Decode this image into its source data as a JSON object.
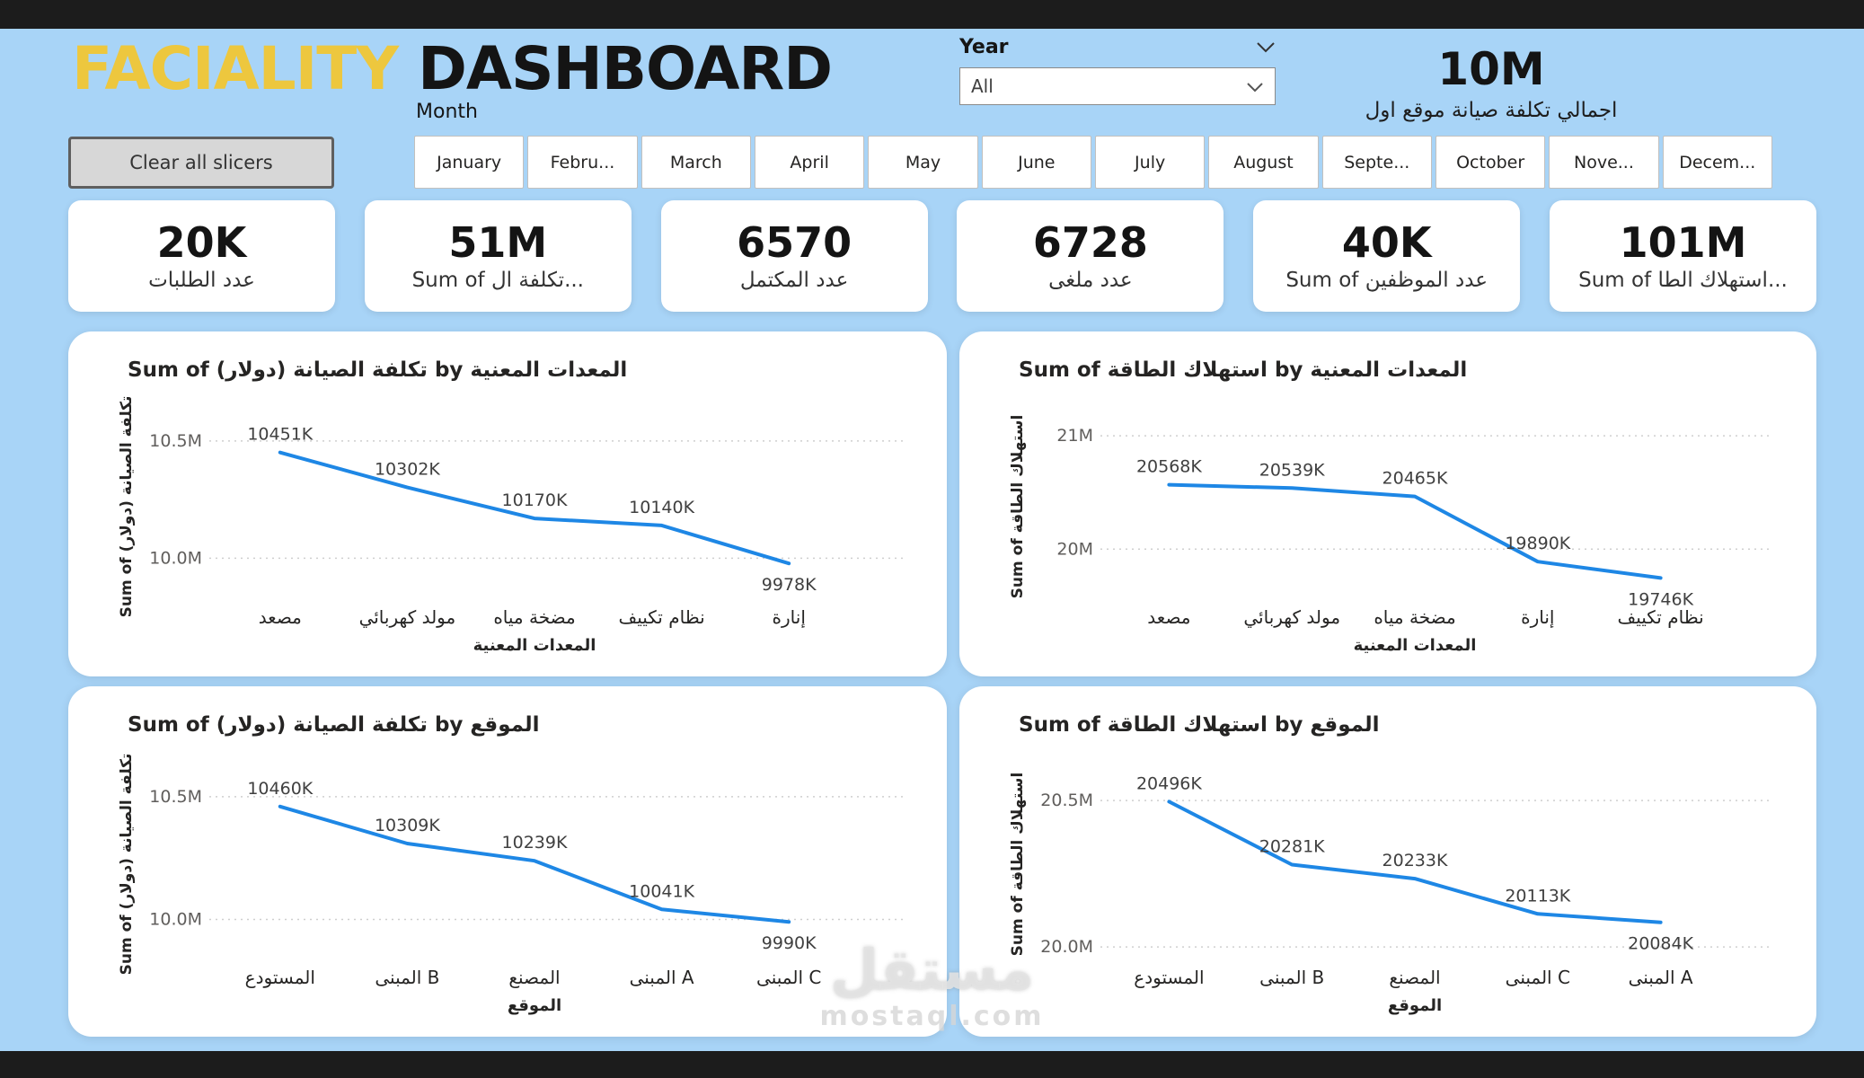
{
  "header": {
    "title_part1": "FACIALITY",
    "title_part2": "DASHBOARD",
    "month_label": "Month",
    "year_label": "Year",
    "year_value": "All",
    "total_value": "10M",
    "total_label": "اجمالي تكلفة صيانة موقع اول",
    "clear_slicers_label": "Clear all slicers"
  },
  "months": [
    "January",
    "Febru...",
    "March",
    "April",
    "May",
    "June",
    "July",
    "August",
    "Septe...",
    "October",
    "Nove...",
    "Decem..."
  ],
  "kpis": [
    {
      "value": "20K",
      "label": "عدد الطلبات"
    },
    {
      "value": "51M",
      "label": "Sum of تكلفة ال..."
    },
    {
      "value": "6570",
      "label": "عدد المكتمل"
    },
    {
      "value": "6728",
      "label": "عدد ملغى"
    },
    {
      "value": "40K",
      "label": "Sum of عدد الموظفين"
    },
    {
      "value": "101M",
      "label": "Sum of استهلاك الطا..."
    }
  ],
  "watermark": {
    "line1": "مستقل",
    "line2": "mostaql.com"
  },
  "colors": {
    "background": "#a8d4f7",
    "bar_dark": "#1c1c1c",
    "accent_yellow": "#edc73e",
    "line_blue": "#1e87e5",
    "grid_gray": "#cfcfcf",
    "card_white": "#ffffff"
  },
  "chart_data": [
    {
      "type": "line",
      "title": "Sum of تكلفة الصيانة (دولار) by المعدات المعنية",
      "ylabel": "Sum of تكلفة الصيانة (دولار)",
      "xlabel": "المعدات المعنية",
      "categories": [
        "مصعد",
        "مولد كهربائي",
        "مضخة مياه",
        "نظام تكييف",
        "إنارة"
      ],
      "values": [
        10451,
        10302,
        10170,
        10140,
        9978
      ],
      "labels": [
        "10451K",
        "10302K",
        "10170K",
        "10140K",
        "9978K"
      ],
      "yticks": [
        {
          "v": 10500,
          "label": "10.5M"
        },
        {
          "v": 10000,
          "label": "10.0M"
        }
      ],
      "ylim": [
        9860,
        10580
      ],
      "legend": "none",
      "grid": "dotted-horizontal"
    },
    {
      "type": "line",
      "title": "Sum of استهلاك الطاقة by المعدات المعنية",
      "ylabel": "Sum of استهلاك الطاقة",
      "xlabel": "المعدات المعنية",
      "categories": [
        "مصعد",
        "مولد كهربائي",
        "مضخة مياه",
        "إنارة",
        "نظام تكييف"
      ],
      "values": [
        20568,
        20539,
        20465,
        19890,
        19746
      ],
      "labels": [
        "20568K",
        "20539K",
        "20465K",
        "19890K",
        "19746K"
      ],
      "yticks": [
        {
          "v": 21000,
          "label": "21M"
        },
        {
          "v": 20000,
          "label": "20M"
        }
      ],
      "ylim": [
        19630,
        21120
      ],
      "legend": "none",
      "grid": "dotted-horizontal"
    },
    {
      "type": "line",
      "title": "Sum of تكلفة الصيانة (دولار) by الموقع",
      "ylabel": "Sum of تكلفة الصيانة (دولار)",
      "xlabel": "الموقع",
      "categories": [
        "المستودع",
        "المبنى B",
        "المصنع",
        "المبنى A",
        "المبنى C"
      ],
      "values": [
        10460,
        10309,
        10239,
        10041,
        9990
      ],
      "labels": [
        "10460K",
        "10309K",
        "10239K",
        "10041K",
        "9990K"
      ],
      "yticks": [
        {
          "v": 10500,
          "label": "10.5M"
        },
        {
          "v": 10000,
          "label": "10.0M"
        }
      ],
      "ylim": [
        9870,
        10580
      ],
      "legend": "none",
      "grid": "dotted-horizontal"
    },
    {
      "type": "line",
      "title": "Sum of استهلاك الطاقة by الموقع",
      "ylabel": "Sum of استهلاك الطاقة",
      "xlabel": "الموقع",
      "categories": [
        "المستودع",
        "المبنى B",
        "المصنع",
        "المبنى C",
        "المبنى A"
      ],
      "values": [
        20496,
        20281,
        20233,
        20113,
        20084
      ],
      "labels": [
        "20496K",
        "20281K",
        "20233K",
        "20113K",
        "20084K"
      ],
      "yticks": [
        {
          "v": 20500,
          "label": "20.5M"
        },
        {
          "v": 20000,
          "label": "20.0M"
        }
      ],
      "ylim": [
        19985,
        20580
      ],
      "legend": "none",
      "grid": "dotted-horizontal"
    }
  ]
}
